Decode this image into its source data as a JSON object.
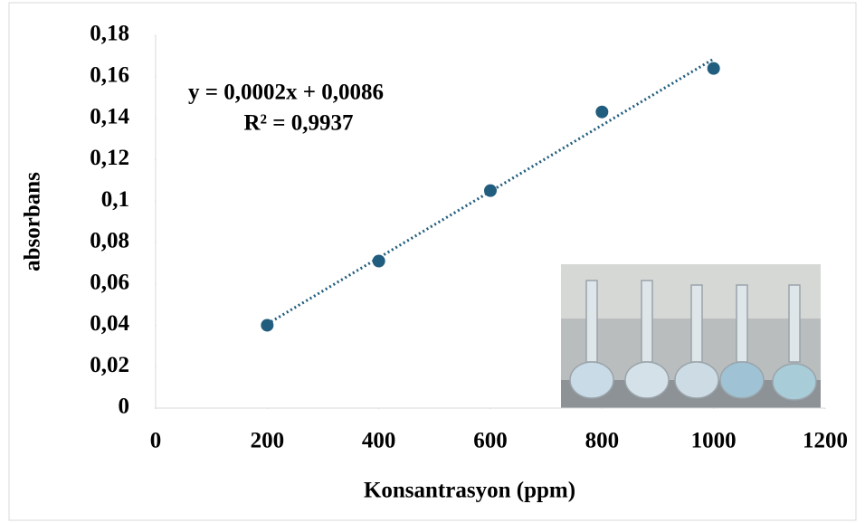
{
  "chart_data": {
    "type": "scatter",
    "x_label": "Konsantrasyon (ppm)",
    "y_label": "absorbans",
    "annotations": [
      "y = 0,0002x + 0,0086",
      "R² = 0,9937"
    ],
    "series": [
      {
        "color": "#215d7e",
        "x": [
          200,
          400,
          600,
          800,
          1000
        ],
        "values": [
          0.04,
          0.071,
          0.105,
          0.143,
          0.164
        ]
      }
    ],
    "trendline": "linear",
    "xlim": [
      0,
      1200
    ],
    "xticks": [
      0,
      200,
      400,
      600,
      800,
      1000,
      1200
    ],
    "ylim": [
      0,
      0.18
    ],
    "yticks": [
      0,
      {
        "value": 0.02,
        "label": "0,02"
      },
      {
        "value": 0.04,
        "label": "0,04"
      },
      {
        "value": 0.06,
        "label": "0,06"
      },
      {
        "value": 0.08,
        "label": "0,08"
      },
      {
        "value": 0.1,
        "label": "0,1"
      },
      {
        "value": 0.12,
        "label": "0,12"
      },
      {
        "value": 0.14,
        "label": "0,14"
      },
      {
        "value": 0.16,
        "label": "0,16"
      },
      {
        "value": 0.18,
        "label": "0,18"
      }
    ]
  }
}
